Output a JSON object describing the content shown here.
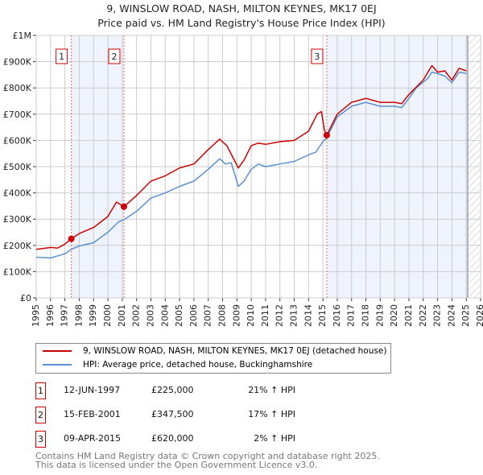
{
  "title_line1": "9, WINSLOW ROAD, NASH, MILTON KEYNES, MK17 0EJ",
  "title_line2": "Price paid vs. HM Land Registry's House Price Index (HPI)",
  "colors": {
    "property": "#cc0000",
    "hpi": "#5b8fd0",
    "shade": "#eef3fc"
  },
  "chart_data": {
    "type": "line",
    "xlim": [
      1995,
      2026
    ],
    "ylim": [
      0,
      1000000
    ],
    "yticks": [
      {
        "v": 0,
        "label": "£0"
      },
      {
        "v": 100000,
        "label": "£100K"
      },
      {
        "v": 200000,
        "label": "£200K"
      },
      {
        "v": 300000,
        "label": "£300K"
      },
      {
        "v": 400000,
        "label": "£400K"
      },
      {
        "v": 500000,
        "label": "£500K"
      },
      {
        "v": 600000,
        "label": "£600K"
      },
      {
        "v": 700000,
        "label": "£700K"
      },
      {
        "v": 800000,
        "label": "£800K"
      },
      {
        "v": 900000,
        "label": "£900K"
      },
      {
        "v": 1000000,
        "label": "£1M"
      }
    ],
    "xticks": [
      "1995",
      "1996",
      "1997",
      "1998",
      "1999",
      "2000",
      "2001",
      "2002",
      "2003",
      "2004",
      "2005",
      "2006",
      "2007",
      "2008",
      "2009",
      "2010",
      "2011",
      "2012",
      "2013",
      "2014",
      "2015",
      "2016",
      "2017",
      "2018",
      "2019",
      "2020",
      "2021",
      "2022",
      "2023",
      "2024",
      "2025",
      "2026"
    ],
    "series": [
      {
        "name": "9, WINSLOW ROAD, NASH, MILTON KEYNES, MK17 0EJ (detached house)",
        "color": "#cc0000",
        "x": [
          1995,
          1996,
          1996.5,
          1997,
          1997.45,
          1998,
          1999,
          2000,
          2000.6,
          2001.12,
          2002,
          2003,
          2004,
          2005,
          2006,
          2007,
          2007.8,
          2008.3,
          2009.1,
          2009.5,
          2010,
          2010.5,
          2011,
          2012,
          2013,
          2014,
          2014.6,
          2014.9,
          2015.1,
          2015.27,
          2016,
          2017,
          2018,
          2019,
          2020,
          2020.5,
          2021,
          2022,
          2022.6,
          2023,
          2023.5,
          2024,
          2024.5,
          2025
        ],
        "y": [
          185000,
          192000,
          190000,
          205000,
          225000,
          245000,
          268000,
          310000,
          365000,
          347500,
          390000,
          445000,
          465000,
          495000,
          510000,
          565000,
          605000,
          580000,
          495000,
          525000,
          580000,
          590000,
          585000,
          595000,
          600000,
          635000,
          700000,
          710000,
          640000,
          620000,
          700000,
          745000,
          760000,
          745000,
          745000,
          740000,
          775000,
          830000,
          885000,
          860000,
          865000,
          830000,
          875000,
          865000
        ]
      },
      {
        "name": "HPI: Average price, detached house, Buckinghamshire",
        "color": "#5b8fd0",
        "x": [
          1995,
          1996,
          1996.5,
          1997,
          1997.45,
          1998,
          1999,
          2000,
          2000.75,
          2001.12,
          2002,
          2003,
          2004,
          2005,
          2006,
          2007,
          2007.8,
          2008.2,
          2008.6,
          2009.1,
          2009.5,
          2010,
          2010.5,
          2011,
          2012,
          2013,
          2014,
          2014.5,
          2015,
          2015.27,
          2016,
          2017,
          2018,
          2019,
          2020,
          2020.5,
          2021,
          2021.5,
          2022.3,
          2022.6,
          2023,
          2023.5,
          2024,
          2024.5,
          2025
        ],
        "y": [
          155000,
          152000,
          160000,
          168000,
          185000,
          198000,
          210000,
          250000,
          290000,
          298000,
          330000,
          380000,
          400000,
          425000,
          445000,
          490000,
          530000,
          510000,
          515000,
          425000,
          445000,
          490000,
          510000,
          500000,
          510000,
          520000,
          545000,
          555000,
          595000,
          610000,
          690000,
          730000,
          745000,
          730000,
          730000,
          725000,
          760000,
          800000,
          835000,
          860000,
          855000,
          845000,
          820000,
          860000,
          855000
        ]
      }
    ],
    "sales": [
      {
        "num": "1",
        "x": 1997.45,
        "y": 225000
      },
      {
        "num": "2",
        "x": 2001.12,
        "y": 347500
      },
      {
        "num": "3",
        "x": 2015.27,
        "y": 620000
      }
    ],
    "forecast_start": 2025.1
  },
  "legend": {
    "property": "9, WINSLOW ROAD, NASH, MILTON KEYNES, MK17 0EJ (detached house)",
    "hpi": "HPI: Average price, detached house, Buckinghamshire"
  },
  "transactions": [
    {
      "num": "1",
      "date": "12-JUN-1997",
      "price": "£225,000",
      "hpi": "21% ↑ HPI"
    },
    {
      "num": "2",
      "date": "15-FEB-2001",
      "price": "£347,500",
      "hpi": "17% ↑ HPI"
    },
    {
      "num": "3",
      "date": "09-APR-2015",
      "price": "£620,000",
      "hpi": "2% ↑ HPI"
    }
  ],
  "footer": {
    "line1": "Contains HM Land Registry data © Crown copyright and database right 2025.",
    "line2": "This data is licensed under the Open Government Licence v3.0."
  }
}
